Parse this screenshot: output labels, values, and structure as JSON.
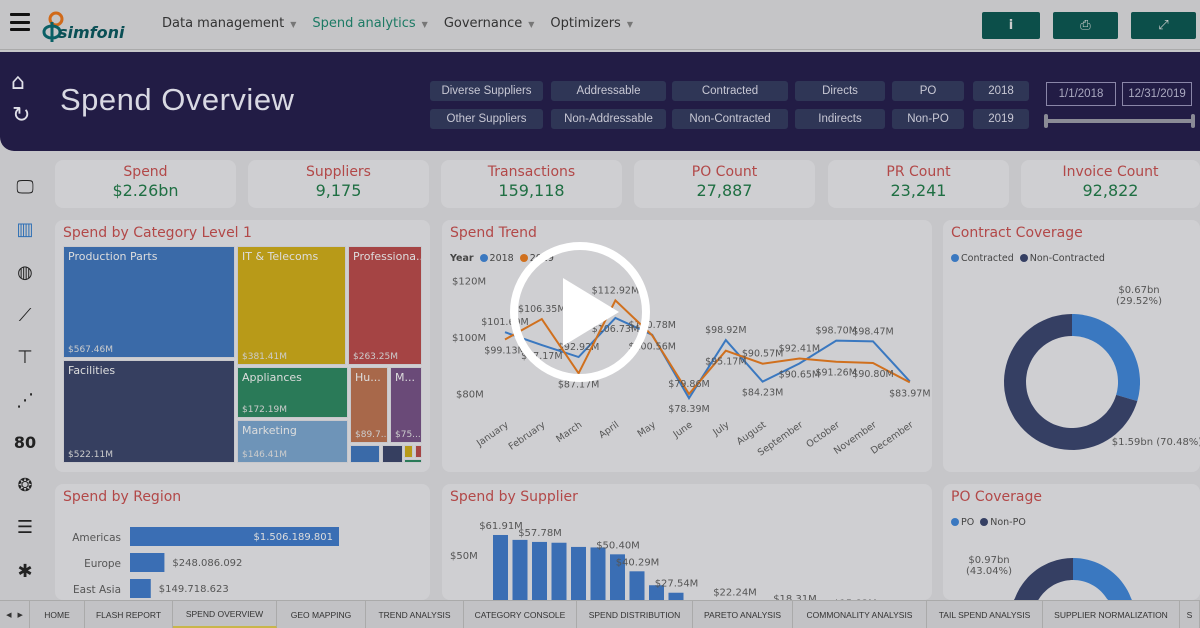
{
  "nav": {
    "menu": [
      {
        "label": "Data management",
        "active": false
      },
      {
        "label": "Spend analytics",
        "active": true
      },
      {
        "label": "Governance",
        "active": false
      },
      {
        "label": "Optimizers",
        "active": false
      }
    ],
    "buttons": [
      {
        "name": "info",
        "glyph": "i"
      },
      {
        "name": "print",
        "glyph": "⎙"
      },
      {
        "name": "expand",
        "glyph": "⤢"
      }
    ],
    "logo_text": "simfoni"
  },
  "header": {
    "title": "Spend Overview",
    "filters": [
      [
        "Diverse Suppliers",
        "Other Suppliers"
      ],
      [
        "Addressable",
        "Non-Addressable"
      ],
      [
        "Contracted",
        "Non-Contracted"
      ],
      [
        "Directs",
        "Indirects"
      ],
      [
        "PO",
        "Non-PO"
      ],
      [
        "2018",
        "2019"
      ]
    ],
    "date_from": "1/1/2018",
    "date_to": "12/31/2019"
  },
  "kpis": [
    {
      "label": "Spend",
      "value": "$2.26bn"
    },
    {
      "label": "Suppliers",
      "value": "9,175"
    },
    {
      "label": "Transactions",
      "value": "159,118"
    },
    {
      "label": "PO Count",
      "value": "27,887"
    },
    {
      "label": "PR Count",
      "value": "23,241"
    },
    {
      "label": "Invoice Count",
      "value": "92,822"
    }
  ],
  "treemap": {
    "title": "Spend by Category Level 1",
    "items": [
      {
        "label": "Production Parts",
        "value": "$567.46M",
        "color": "#3a6aa8"
      },
      {
        "label": "Facilities",
        "value": "$522.11M",
        "color": "#363f60"
      },
      {
        "label": "IT & Telecoms",
        "value": "$381.41M",
        "color": "#b89a18"
      },
      {
        "label": "Professiona...",
        "value": "$263.25M",
        "color": "#a54444"
      },
      {
        "label": "Appliances",
        "value": "$172.19M",
        "color": "#2a7a58"
      },
      {
        "label": "Marketing",
        "value": "$146.41M",
        "color": "#6e94b8"
      },
      {
        "label": "Hu...",
        "value": "$89.7...",
        "color": "#a8684a"
      },
      {
        "label": "M...",
        "value": "$75....",
        "color": "#6a4a78"
      }
    ]
  },
  "chart_data": [
    {
      "type": "line",
      "title": "Spend Trend",
      "legend_title": "Year",
      "ylim": [
        75,
        125
      ],
      "yticks": [
        "$80M",
        "$100M",
        "$120M"
      ],
      "ytick_values": [
        80,
        100,
        120
      ],
      "categories": [
        "January",
        "February",
        "March",
        "April",
        "May",
        "June",
        "July",
        "August",
        "September",
        "October",
        "November",
        "December"
      ],
      "series": [
        {
          "name": "2018",
          "color": "#3a78c0",
          "values": [
            101.69,
            97.17,
            92.92,
            106.73,
            100.78,
            78.39,
            98.92,
            84.23,
            90.65,
            98.7,
            98.47,
            84.3
          ],
          "labels": [
            "$101.69M",
            "$97.17M",
            "$92.92M",
            "$106.73M",
            "$100.78M",
            "$78.39M",
            "$98.92M",
            "$84.23M",
            "$90.65M",
            "$98.70M",
            "$98.47M",
            ""
          ]
        },
        {
          "name": "2019",
          "color": "#d0701e",
          "values": [
            99.13,
            106.35,
            87.17,
            112.92,
            100.56,
            79.86,
            95.17,
            90.57,
            92.41,
            91.26,
            90.8,
            83.97
          ],
          "labels": [
            "$99.13M",
            "$106.35M",
            "$87.17M",
            "$112.92M",
            "$100.56M",
            "$79.86M",
            "$95.17M",
            "$90.57M",
            "$92.41M",
            "$91.26M",
            "$90.80M",
            "$83.97M"
          ]
        }
      ]
    },
    {
      "type": "pie",
      "title": "Contract Coverage",
      "categories": [
        "Contracted",
        "Non-Contracted"
      ],
      "values": [
        29.52,
        70.48
      ],
      "labels": [
        "$0.67bn (29.52%)",
        "$1.59bn (70.48%)"
      ],
      "colors": [
        "#3a78c0",
        "#353f63"
      ]
    },
    {
      "type": "bar",
      "title": "Spend by Region",
      "categories": [
        "Americas",
        "Europe",
        "East Asia"
      ],
      "values": [
        1506189801,
        248086092,
        149718623
      ],
      "labels": [
        "$1.506.189.801",
        "$248.086.092",
        "$149.718.623"
      ],
      "color": "#3a6eb4"
    },
    {
      "type": "bar",
      "title": "Spend by Supplier",
      "yticks": [
        "$50M"
      ],
      "ytick_values": [
        50
      ],
      "values": [
        61.91,
        59.0,
        57.78,
        57.3,
        54.8,
        54.5,
        50.4,
        40.29,
        32.0,
        27.54,
        22.24,
        18.31,
        15.82
      ],
      "labels": [
        "$61.91M",
        "",
        "$57.78M",
        "",
        "",
        "",
        "$50.40M",
        "$40.29M",
        "",
        "$27.54M",
        "$22.24M",
        "$18.31M",
        "$15.82M"
      ],
      "color": "#3a6eb4"
    },
    {
      "type": "pie",
      "title": "PO Coverage",
      "categories": [
        "PO",
        "Non-PO"
      ],
      "values": [
        56.96,
        43.04
      ],
      "labels": [
        "",
        "$0.97bn (43.04%)"
      ],
      "colors": [
        "#3a78c0",
        "#353f63"
      ]
    }
  ],
  "tabs": [
    "HOME",
    "FLASH REPORT",
    "SPEND OVERVIEW",
    "GEO MAPPING",
    "TREND ANALYSIS",
    "CATEGORY CONSOLE",
    "SPEND DISTRIBUTION",
    "PARETO ANALYSIS",
    "COMMONALITY ANALYSIS",
    "TAIL SPEND ANALYSIS",
    "SUPPLIER NORMALIZATION",
    "S"
  ],
  "active_tab": "SPEND OVERVIEW"
}
